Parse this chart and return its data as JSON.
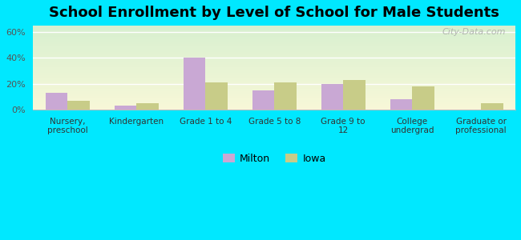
{
  "title": "School Enrollment by Level of School for Male Students",
  "categories": [
    "Nursery,\npreschool",
    "Kindergarten",
    "Grade 1 to 4",
    "Grade 5 to 8",
    "Grade 9 to\n12",
    "College\nundergrad",
    "Graduate or\nprofessional"
  ],
  "milton_values": [
    13,
    3,
    40,
    15,
    20,
    8,
    0
  ],
  "iowa_values": [
    7,
    5,
    21,
    21,
    23,
    18,
    5
  ],
  "milton_color": "#c9a8d4",
  "iowa_color": "#c8cc88",
  "background_color": "#00e8ff",
  "grad_color_top": "#d8f0d0",
  "grad_color_bottom": "#f8f8d8",
  "ylim": [
    0,
    65
  ],
  "yticks": [
    0,
    20,
    40,
    60
  ],
  "ytick_labels": [
    "0%",
    "20%",
    "40%",
    "60%"
  ],
  "legend_labels": [
    "Milton",
    "Iowa"
  ],
  "title_fontsize": 13,
  "watermark": "City-Data.com",
  "bar_width": 0.32
}
